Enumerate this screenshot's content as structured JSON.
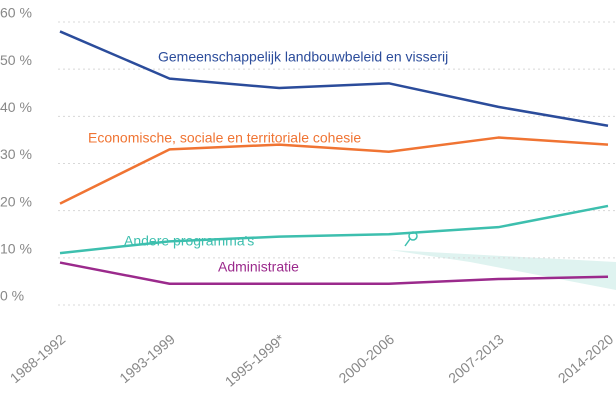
{
  "chart_data": {
    "type": "line",
    "categories": [
      "1988-1992",
      "1993-1999",
      "1995-1999*",
      "2000-2006",
      "2007-2013",
      "2014-2020"
    ],
    "series": [
      {
        "name": "Gemeenschappelijk landbouwbeleid en visserij",
        "color": "#2b4c9b",
        "values": [
          58,
          48,
          46,
          47,
          42,
          38
        ]
      },
      {
        "name": "Economische, sociale en territoriale cohesie",
        "color": "#f07433",
        "values": [
          21.5,
          33,
          34,
          32.5,
          35.5,
          34
        ]
      },
      {
        "name": "Andere programma's",
        "color": "#3dbfae",
        "values": [
          11,
          13.5,
          14.5,
          15,
          16.5,
          21
        ]
      },
      {
        "name": "Administratie",
        "color": "#9b2a8c",
        "values": [
          9,
          4.5,
          4.5,
          4.5,
          5.5,
          6
        ]
      }
    ],
    "ylim": [
      0,
      60
    ],
    "yticks": [
      {
        "value": 0,
        "label": "0 %"
      },
      {
        "value": 10,
        "label": "10 %"
      },
      {
        "value": 20,
        "label": "20 %"
      },
      {
        "value": 30,
        "label": "30 %"
      },
      {
        "value": 40,
        "label": "40 %"
      },
      {
        "value": 50,
        "label": "50 %"
      },
      {
        "value": 60,
        "label": "60 %"
      }
    ],
    "grid": true
  }
}
